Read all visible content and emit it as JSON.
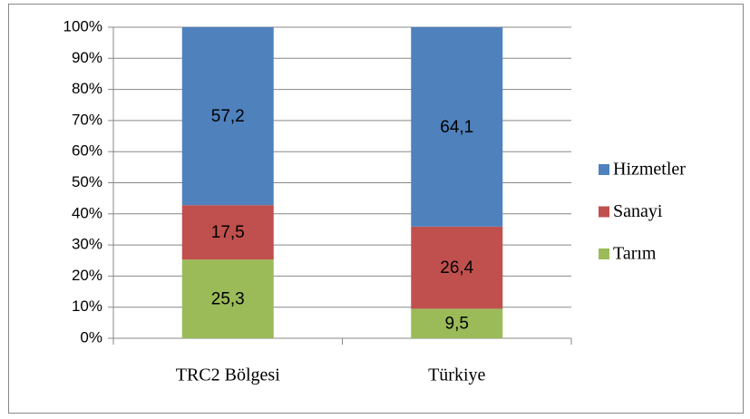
{
  "chart_data": {
    "type": "stacked_bar",
    "categories": [
      "TRC2 Bölgesi",
      "Türkiye"
    ],
    "series": [
      {
        "name": "Tarım",
        "color": "#9bbb59",
        "values": [
          25.3,
          9.5
        ],
        "value_labels": [
          "25,3",
          "9,5"
        ]
      },
      {
        "name": "Sanayi",
        "color": "#c0504d",
        "values": [
          17.5,
          26.4
        ],
        "value_labels": [
          "17,5",
          "26,4"
        ]
      },
      {
        "name": "Hizmetler",
        "color": "#4f81bd",
        "values": [
          57.2,
          64.1
        ],
        "value_labels": [
          "57,2",
          "64,1"
        ]
      }
    ],
    "ylim": [
      0,
      100
    ],
    "yticks": [
      {
        "value": 0,
        "label": "0%"
      },
      {
        "value": 10,
        "label": "10%"
      },
      {
        "value": 20,
        "label": "20%"
      },
      {
        "value": 30,
        "label": "30%"
      },
      {
        "value": 40,
        "label": "40%"
      },
      {
        "value": 50,
        "label": "50%"
      },
      {
        "value": 60,
        "label": "60%"
      },
      {
        "value": 70,
        "label": "70%"
      },
      {
        "value": 80,
        "label": "80%"
      },
      {
        "value": 90,
        "label": "90%"
      },
      {
        "value": 100,
        "label": "100%"
      }
    ],
    "grid": true,
    "legend": "right"
  }
}
